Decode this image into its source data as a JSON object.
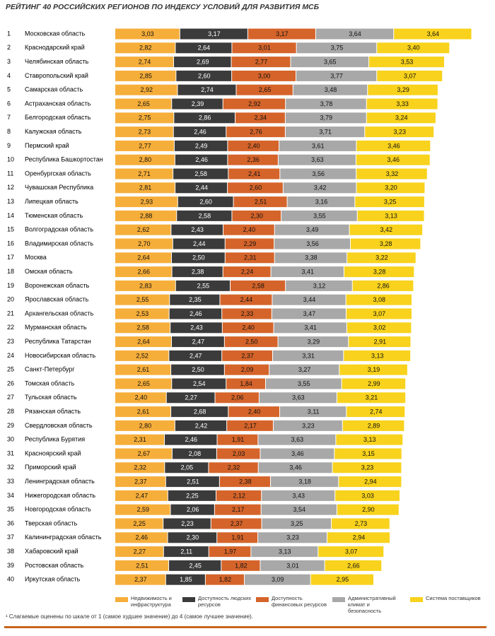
{
  "chart_data": {
    "type": "stacked-bar-horizontal",
    "title": "РЕЙТИНГ 40 РОССИЙСКИХ РЕГИОНОВ ПО ИНДЕКСУ УСЛОВИЙ ДЛЯ РАЗВИТИЯ МСБ",
    "ranks": [
      1,
      2,
      3,
      4,
      5,
      6,
      7,
      8,
      9,
      10,
      11,
      12,
      13,
      14,
      15,
      16,
      17,
      18,
      19,
      20,
      21,
      22,
      23,
      24,
      25,
      26,
      27,
      28,
      29,
      30,
      31,
      32,
      33,
      34,
      35,
      36,
      37,
      38,
      39,
      40
    ],
    "categories": [
      "Московская область",
      "Краснодарский край",
      "Челябинская область",
      "Ставропольский край",
      "Самарская область",
      "Астраханская область",
      "Белгородская область",
      "Калужская область",
      "Пермский край",
      "Республика Башкортостан",
      "Оренбургская область",
      "Чувашская Республика",
      "Липецкая область",
      "Тюменская область",
      "Волгоградская область",
      "Владимирская область",
      "Москва",
      "Омская область",
      "Воронежская область",
      "Ярославская область",
      "Архангельская область",
      "Мурманская область",
      "Республика Татарстан",
      "Новосибирская область",
      "Санкт-Петербург",
      "Томская область",
      "Тульская область",
      "Рязанская область",
      "Свердловская область",
      "Республика Бурятия",
      "Красноярский край",
      "Приморский край",
      "Ленинградская область",
      "Нижегородская область",
      "Новгородская область",
      "Тверская область",
      "Калининградская область",
      "Хабаровский край",
      "Ростовская область",
      "Иркутская область"
    ],
    "series": [
      {
        "name": "Недвижимость и инфраструктура",
        "color": "#f6ae3a",
        "label_color": "#111111",
        "values": [
          3.03,
          2.82,
          2.74,
          2.85,
          2.92,
          2.65,
          2.75,
          2.73,
          2.77,
          2.8,
          2.71,
          2.81,
          2.93,
          2.88,
          2.62,
          2.7,
          2.64,
          2.66,
          2.83,
          2.55,
          2.53,
          2.58,
          2.64,
          2.52,
          2.61,
          2.65,
          2.4,
          2.61,
          2.8,
          2.31,
          2.67,
          2.32,
          2.37,
          2.47,
          2.59,
          2.25,
          2.46,
          2.27,
          2.51,
          2.37
        ],
        "value_labels": [
          "3,03",
          "2,82",
          "2,74",
          "2,85",
          "2,92",
          "2,65",
          "2,75",
          "2,73",
          "2,77",
          "2,80",
          "2,71",
          "2,81",
          "2,93",
          "2,88",
          "2,62",
          "2,70",
          "2,64",
          "2,66",
          "2,83",
          "2,55",
          "2,53",
          "2,58",
          "2,64",
          "2,52",
          "2,61",
          "2,65",
          "2,40",
          "2,61",
          "2,80",
          "2,31",
          "2,67",
          "2,32",
          "2,37",
          "2,47",
          "2,59",
          "2,25",
          "2,46",
          "2,27",
          "2,51",
          "2,37"
        ]
      },
      {
        "name": "Доступность людских ресурсов",
        "color": "#3b3b3b",
        "label_color": "#ffffff",
        "values": [
          3.17,
          2.64,
          2.69,
          2.6,
          2.74,
          2.39,
          2.86,
          2.46,
          2.49,
          2.46,
          2.58,
          2.44,
          2.6,
          2.58,
          2.43,
          2.44,
          2.5,
          2.38,
          2.55,
          2.35,
          2.46,
          2.43,
          2.47,
          2.47,
          2.5,
          2.54,
          2.27,
          2.68,
          2.42,
          2.46,
          2.08,
          2.05,
          2.51,
          2.25,
          2.06,
          2.23,
          2.3,
          2.11,
          2.45,
          1.85
        ],
        "value_labels": [
          "3,17",
          "2,64",
          "2,69",
          "2,60",
          "2,74",
          "2,39",
          "2,86",
          "2,46",
          "2,49",
          "2,46",
          "2,58",
          "2,44",
          "2,60",
          "2,58",
          "2,43",
          "2,44",
          "2,50",
          "2,38",
          "2,55",
          "2,35",
          "2,46",
          "2,43",
          "2,47",
          "2,47",
          "2,50",
          "2,54",
          "2,27",
          "2,68",
          "2,42",
          "2,46",
          "2,08",
          "2,05",
          "2,51",
          "2,25",
          "2,06",
          "2,23",
          "2,30",
          "2,11",
          "2,45",
          "1,85"
        ]
      },
      {
        "name": "Доступность финансовых ресурсов",
        "color": "#d5642a",
        "label_color": "#111111",
        "values": [
          3.17,
          3.01,
          2.77,
          3.0,
          2.65,
          2.92,
          2.34,
          2.76,
          2.4,
          2.36,
          2.41,
          2.6,
          2.51,
          2.3,
          2.4,
          2.29,
          2.31,
          2.24,
          2.58,
          2.44,
          2.33,
          2.4,
          2.5,
          2.37,
          2.09,
          1.84,
          2.06,
          2.4,
          2.17,
          1.91,
          2.03,
          2.32,
          2.38,
          2.12,
          2.17,
          2.37,
          1.91,
          1.97,
          1.82,
          1.82
        ],
        "value_labels": [
          "3,17",
          "3,01",
          "2,77",
          "3,00",
          "2,65",
          "2,92",
          "2,34",
          "2,76",
          "2,40",
          "2,36",
          "2,41",
          "2,60",
          "2,51",
          "2,30",
          "2,40",
          "2,29",
          "2,31",
          "2,24",
          "2,58",
          "2,44",
          "2,33",
          "2,40",
          "2,50",
          "2,37",
          "2,09",
          "1,84",
          "2,06",
          "2,40",
          "2,17",
          "1,91",
          "2,03",
          "2,32",
          "2,38",
          "2,12",
          "2,17",
          "2,37",
          "1,91",
          "1,97",
          "1,82",
          "1,82"
        ]
      },
      {
        "name": "Административный климат и безопасность",
        "color": "#a8a8a8",
        "label_color": "#111111",
        "values": [
          3.64,
          3.75,
          3.65,
          3.77,
          3.48,
          3.78,
          3.79,
          3.71,
          3.61,
          3.63,
          3.56,
          3.42,
          3.16,
          3.55,
          3.49,
          3.56,
          3.38,
          3.41,
          3.12,
          3.44,
          3.47,
          3.41,
          3.29,
          3.31,
          3.27,
          3.55,
          3.63,
          3.11,
          3.23,
          3.63,
          3.46,
          3.46,
          3.18,
          3.43,
          3.54,
          3.25,
          3.23,
          3.13,
          3.01,
          3.09
        ],
        "value_labels": [
          "3,64",
          "3,75",
          "3,65",
          "3,77",
          "3,48",
          "3,78",
          "3,79",
          "3,71",
          "3,61",
          "3,63",
          "3,56",
          "3,42",
          "3,16",
          "3,55",
          "3,49",
          "3,56",
          "3,38",
          "3,41",
          "3,12",
          "3,44",
          "3,47",
          "3,41",
          "3,29",
          "3,31",
          "3,27",
          "3,55",
          "3,63",
          "3,11",
          "3,23",
          "3,63",
          "3,46",
          "3,46",
          "3,18",
          "3,43",
          "3,54",
          "3,25",
          "3,23",
          "3,13",
          "3,01",
          "3,09"
        ]
      },
      {
        "name": "Система поставщиков",
        "color": "#f8d21c",
        "label_color": "#111111",
        "values": [
          3.64,
          3.4,
          3.53,
          3.07,
          3.29,
          3.33,
          3.24,
          3.23,
          3.46,
          3.46,
          3.32,
          3.2,
          3.25,
          3.13,
          3.42,
          3.28,
          3.22,
          3.28,
          2.86,
          3.08,
          3.07,
          3.02,
          2.91,
          3.13,
          3.19,
          2.99,
          3.21,
          2.74,
          2.89,
          3.13,
          3.15,
          3.23,
          2.94,
          3.03,
          2.9,
          2.73,
          2.94,
          3.07,
          2.66,
          2.95
        ],
        "value_labels": [
          "3,64",
          "3,40",
          "3,53",
          "3,07",
          "3,29",
          "3,33",
          "3,24",
          "3,23",
          "3,46",
          "3,46",
          "3,32",
          "3,20",
          "3,25",
          "3,13",
          "3,42",
          "3,28",
          "3,22",
          "3,28",
          "2,86",
          "3,08",
          "3,07",
          "3,02",
          "2,91",
          "3,13",
          "3,19",
          "2,99",
          "3,21",
          "2,74",
          "2,89",
          "3,13",
          "3,15",
          "3,23",
          "2,94",
          "3,03",
          "2,90",
          "2,73",
          "2,94",
          "3,07",
          "2,66",
          "2,95"
        ]
      }
    ],
    "footnote": "¹ Слагаемые оценены по шкале от 1 (самое худшее значение) до 4 (самое лучшее значение)."
  }
}
